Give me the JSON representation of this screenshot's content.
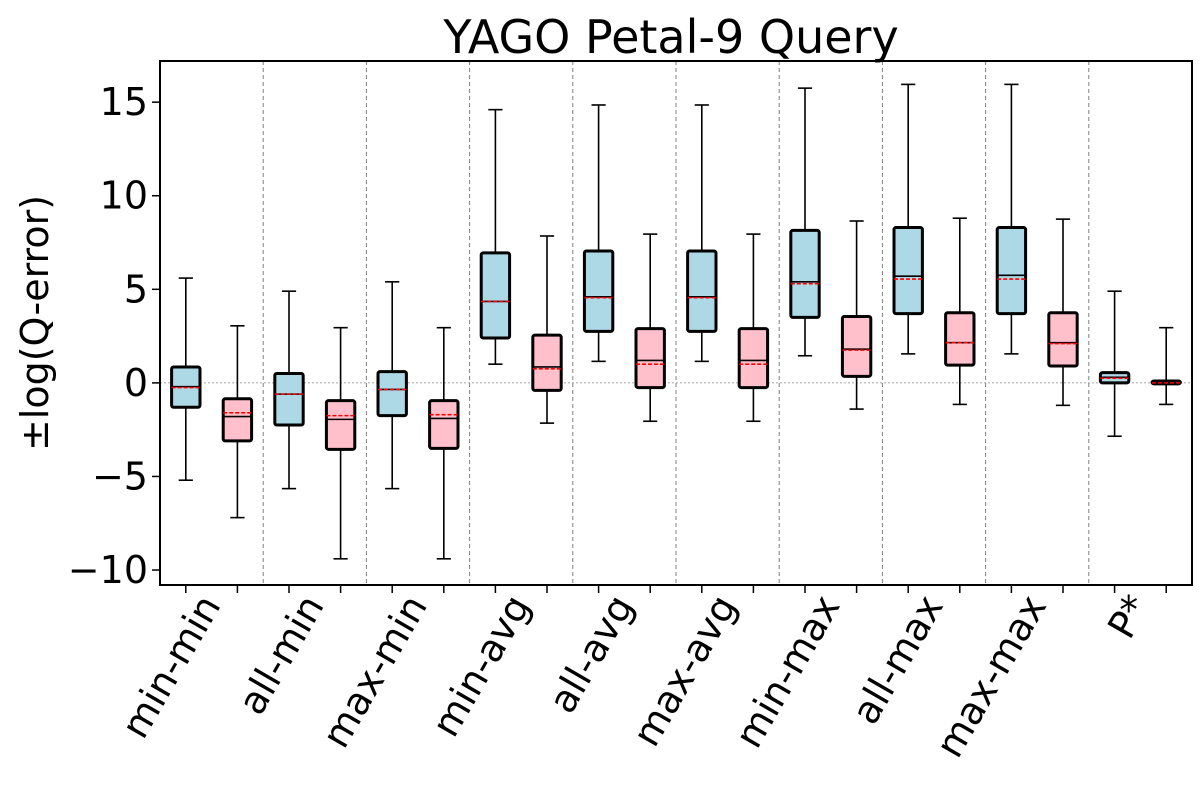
{
  "chart_data": {
    "type": "box",
    "title": "YAGO Petal-9 Query",
    "ylabel": "±log(Q-error)",
    "xlabel": "",
    "ylim": [
      -10.8,
      17.2
    ],
    "yticks": [
      {
        "value": -10,
        "label": "−10"
      },
      {
        "value": -5,
        "label": "−5"
      },
      {
        "value": 0,
        "label": "0"
      },
      {
        "value": 5,
        "label": "5"
      },
      {
        "value": 10,
        "label": "10"
      },
      {
        "value": 15,
        "label": "15"
      }
    ],
    "categories": [
      "min-min",
      "all-min",
      "max-min",
      "min-avg",
      "all-avg",
      "max-avg",
      "min-max",
      "all-max",
      "max-max",
      "P*"
    ],
    "box_colors": [
      "#add8e6",
      "#ffc0cb"
    ],
    "median_color": "#000000",
    "mean_color": "#ff0000",
    "grid": "vertical dashed separators between categories",
    "boxes": [
      {
        "category": "min-min",
        "series": 0,
        "whislo": -5.2,
        "q1": -1.3,
        "med": -0.2,
        "mean": -0.25,
        "q3": 0.85,
        "whishi": 5.6
      },
      {
        "category": "min-min",
        "series": 1,
        "whislo": -7.2,
        "q1": -3.1,
        "med": -1.8,
        "mean": -1.6,
        "q3": -0.85,
        "whishi": 3.05
      },
      {
        "category": "all-min",
        "series": 0,
        "whislo": -5.65,
        "q1": -2.25,
        "med": -0.6,
        "mean": -0.6,
        "q3": 0.5,
        "whishi": 4.9
      },
      {
        "category": "all-min",
        "series": 1,
        "whislo": -9.4,
        "q1": -3.55,
        "med": -1.95,
        "mean": -1.75,
        "q3": -0.95,
        "whishi": 2.95
      },
      {
        "category": "max-min",
        "series": 0,
        "whislo": -5.65,
        "q1": -1.75,
        "med": -0.35,
        "mean": -0.35,
        "q3": 0.6,
        "whishi": 5.4
      },
      {
        "category": "max-min",
        "series": 1,
        "whislo": -9.4,
        "q1": -3.5,
        "med": -1.9,
        "mean": -1.7,
        "q3": -0.95,
        "whishi": 2.95
      },
      {
        "category": "min-avg",
        "series": 0,
        "whislo": 1.0,
        "q1": 2.4,
        "med": 4.35,
        "mean": 4.35,
        "q3": 6.95,
        "whishi": 14.6
      },
      {
        "category": "min-avg",
        "series": 1,
        "whislo": -2.15,
        "q1": -0.4,
        "med": 0.85,
        "mean": 0.75,
        "q3": 2.55,
        "whishi": 7.85
      },
      {
        "category": "all-avg",
        "series": 0,
        "whislo": 1.15,
        "q1": 2.75,
        "med": 4.6,
        "mean": 4.55,
        "q3": 7.05,
        "whishi": 14.85
      },
      {
        "category": "all-avg",
        "series": 1,
        "whislo": -2.05,
        "q1": -0.25,
        "med": 1.2,
        "mean": 1.0,
        "q3": 2.9,
        "whishi": 7.95
      },
      {
        "category": "max-avg",
        "series": 0,
        "whislo": 1.15,
        "q1": 2.75,
        "med": 4.6,
        "mean": 4.55,
        "q3": 7.05,
        "whishi": 14.85
      },
      {
        "category": "max-avg",
        "series": 1,
        "whislo": -2.05,
        "q1": -0.25,
        "med": 1.2,
        "mean": 1.0,
        "q3": 2.9,
        "whishi": 7.95
      },
      {
        "category": "min-max",
        "series": 0,
        "whislo": 1.45,
        "q1": 3.5,
        "med": 5.4,
        "mean": 5.3,
        "q3": 8.15,
        "whishi": 15.75
      },
      {
        "category": "min-max",
        "series": 1,
        "whislo": -1.4,
        "q1": 0.35,
        "med": 1.8,
        "mean": 1.75,
        "q3": 3.55,
        "whishi": 8.65
      },
      {
        "category": "all-max",
        "series": 0,
        "whislo": 1.55,
        "q1": 3.7,
        "med": 5.7,
        "mean": 5.55,
        "q3": 8.3,
        "whishi": 15.95
      },
      {
        "category": "all-max",
        "series": 1,
        "whislo": -1.15,
        "q1": 0.95,
        "med": 2.15,
        "mean": 2.15,
        "q3": 3.75,
        "whishi": 8.8
      },
      {
        "category": "max-max",
        "series": 0,
        "whislo": 1.55,
        "q1": 3.7,
        "med": 5.75,
        "mean": 5.55,
        "q3": 8.3,
        "whishi": 15.95
      },
      {
        "category": "max-max",
        "series": 1,
        "whislo": -1.2,
        "q1": 0.9,
        "med": 2.15,
        "mean": 2.1,
        "q3": 3.75,
        "whishi": 8.75
      },
      {
        "category": "P*",
        "series": 0,
        "whislo": -2.85,
        "q1": 0.0,
        "med": 0.3,
        "mean": 0.25,
        "q3": 0.55,
        "whishi": 4.9
      },
      {
        "category": "P*",
        "series": 1,
        "whislo": -1.15,
        "q1": -0.05,
        "med": 0.05,
        "mean": 0.0,
        "q3": 0.1,
        "whishi": 2.95
      }
    ]
  }
}
